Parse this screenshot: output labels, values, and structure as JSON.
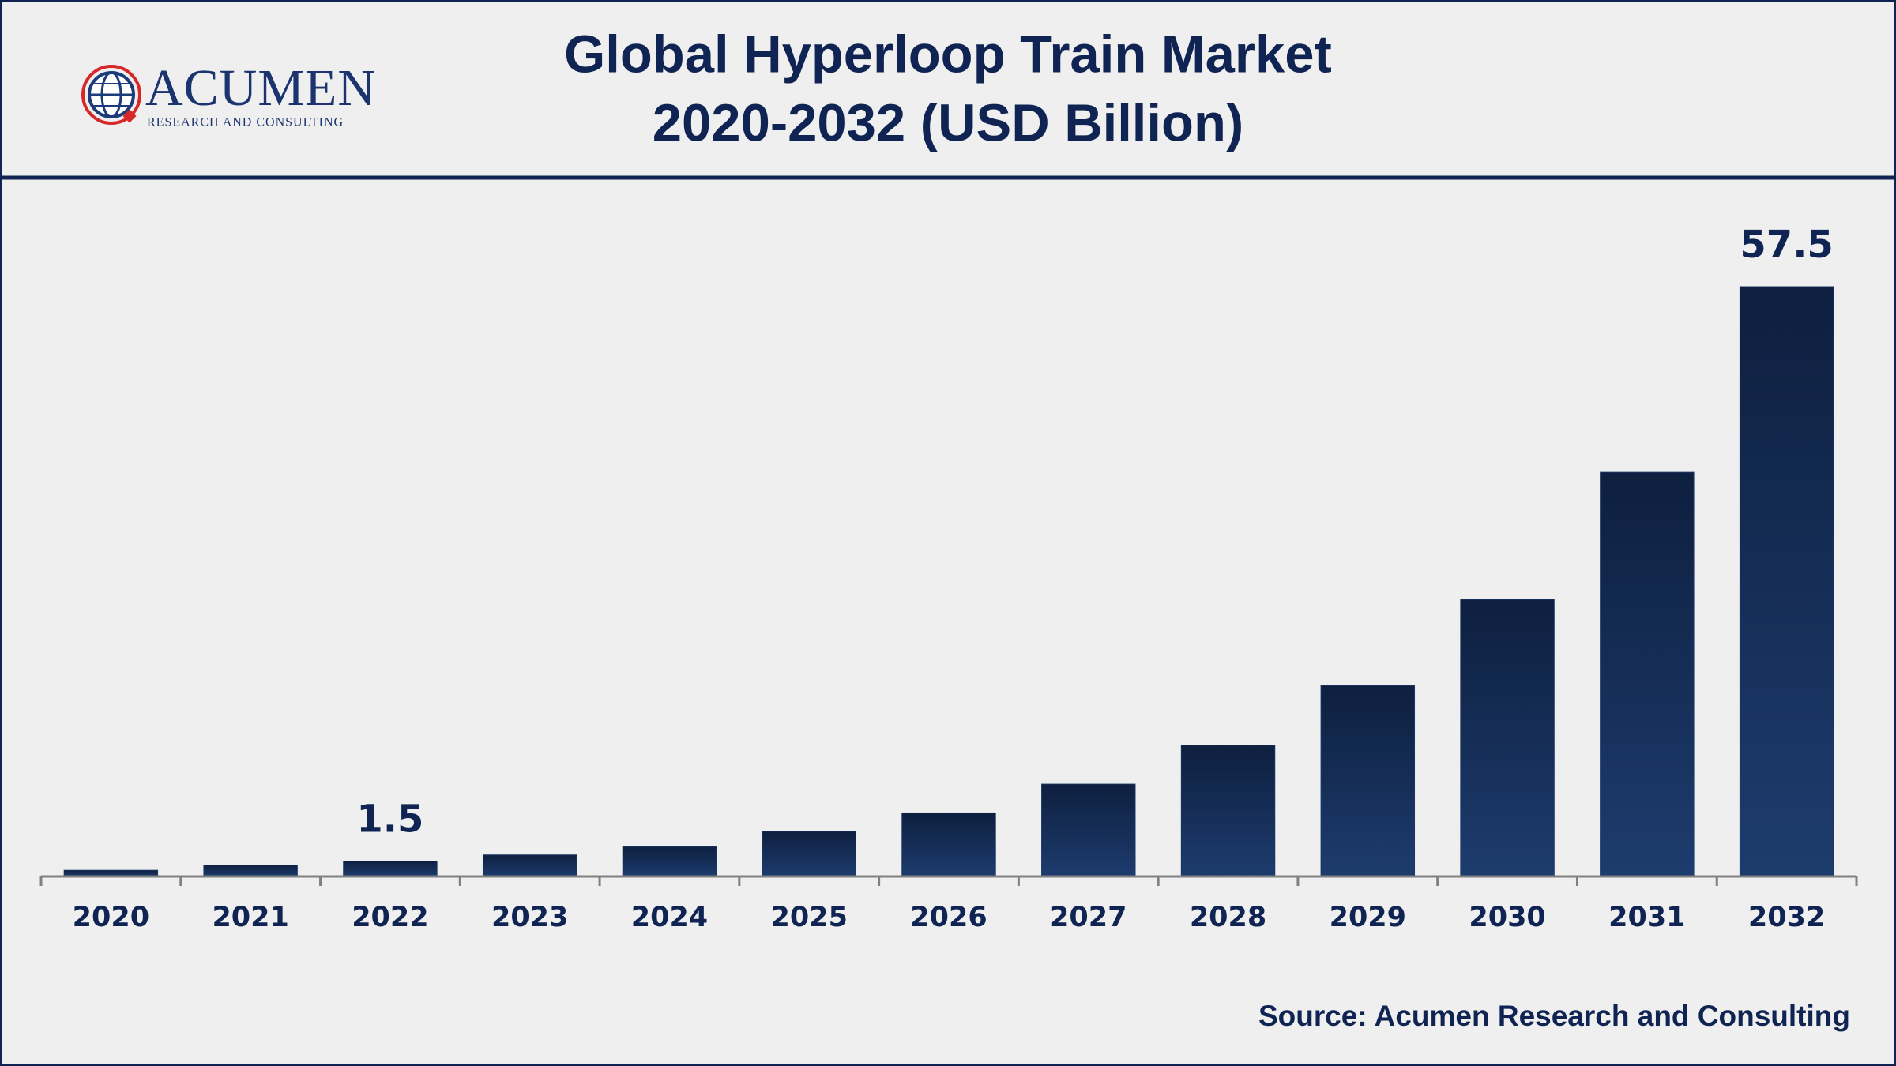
{
  "logo": {
    "name": "ACUMEN",
    "tagline": "RESEARCH AND CONSULTING"
  },
  "chart_data": {
    "type": "bar",
    "title": [
      "Global Hyperloop Train Market",
      "2020-2032 (USD Billion)"
    ],
    "categories": [
      "2020",
      "2021",
      "2022",
      "2023",
      "2024",
      "2025",
      "2026",
      "2027",
      "2028",
      "2029",
      "2030",
      "2031",
      "2032"
    ],
    "values": [
      0.6,
      1.1,
      1.5,
      2.1,
      2.9,
      4.4,
      6.2,
      9.0,
      12.8,
      18.6,
      27.0,
      39.4,
      57.5
    ],
    "value_labels": [
      null,
      null,
      "1.5",
      null,
      null,
      null,
      null,
      null,
      null,
      null,
      null,
      null,
      "57.5"
    ],
    "color": "#1a3766",
    "source": "Source: Acumen Research and Consulting"
  }
}
